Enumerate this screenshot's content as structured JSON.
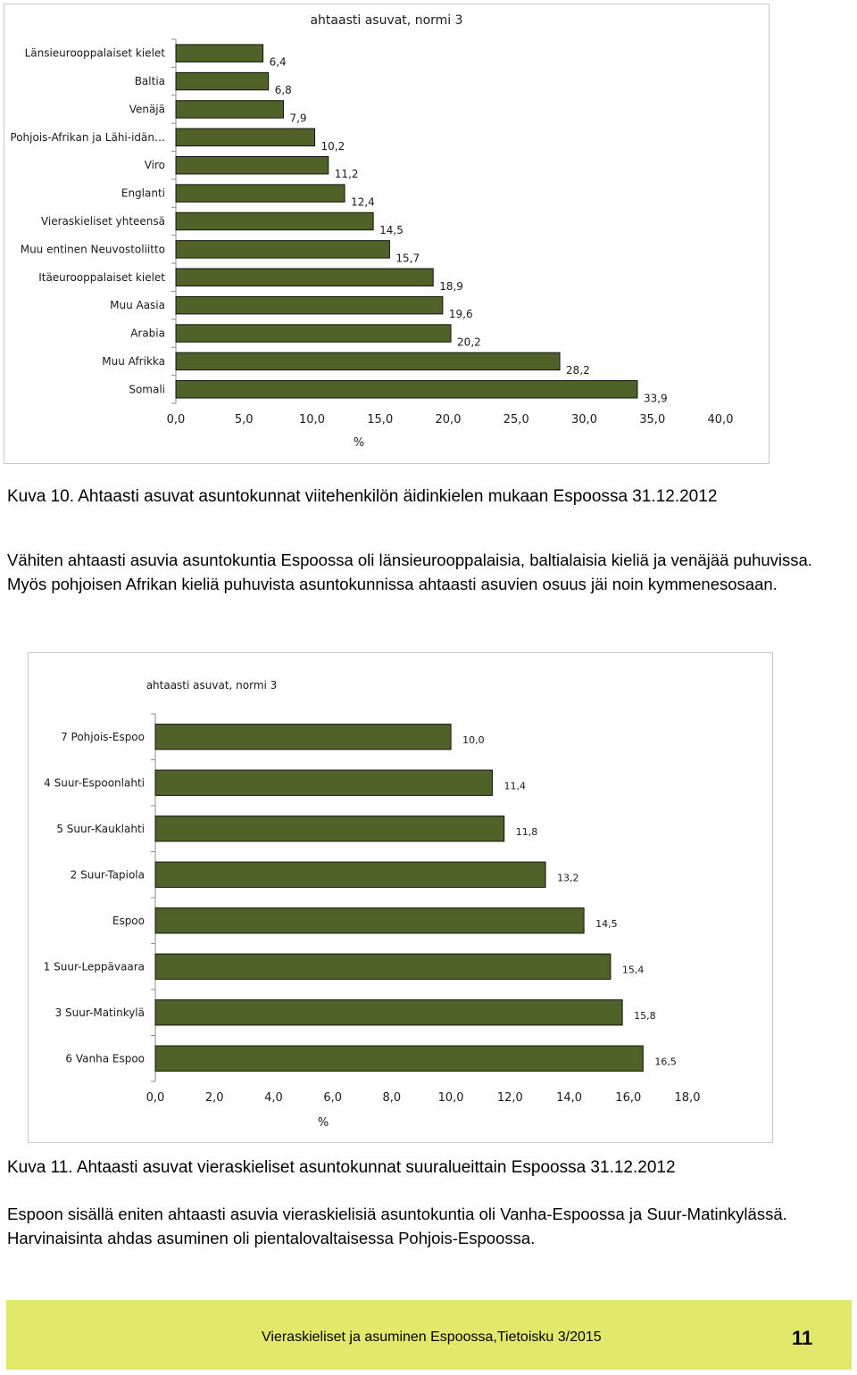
{
  "chart_data": [
    {
      "type": "bar",
      "orientation": "horizontal",
      "title": "ahtaasti asuvat, normi 3",
      "xlabel": "%",
      "xlim": [
        0,
        40
      ],
      "xticks": [
        "0,0",
        "5,0",
        "10,0",
        "15,0",
        "20,0",
        "25,0",
        "30,0",
        "35,0",
        "40,0"
      ],
      "bar_color": "#4f6228",
      "categories": [
        "Länsieurooppalaiset kielet",
        "Baltia",
        "Venäjä",
        "Pohjois-Afrikan ja Lähi-idän…",
        "Viro",
        "Englanti",
        "Vieraskieliset yhteensä",
        "Muu entinen Neuvostoliitto",
        "Itäeurooppalaiset kielet",
        "Muu Aasia",
        "Arabia",
        "Muu Afrikka",
        "Somali"
      ],
      "values": [
        6.4,
        6.8,
        7.9,
        10.2,
        11.2,
        12.4,
        14.5,
        15.7,
        18.9,
        19.6,
        20.2,
        28.2,
        33.9
      ],
      "value_labels": [
        "6,4",
        "6,8",
        "7,9",
        "10,2",
        "11,2",
        "12,4",
        "14,5",
        "15,7",
        "18,9",
        "19,6",
        "20,2",
        "28,2",
        "33,9"
      ]
    },
    {
      "type": "bar",
      "orientation": "horizontal",
      "title": "ahtaasti asuvat, normi 3",
      "xlabel": "%",
      "xlim": [
        0,
        18
      ],
      "xticks": [
        "0,0",
        "2,0",
        "4,0",
        "6,0",
        "8,0",
        "10,0",
        "12,0",
        "14,0",
        "16,0",
        "18,0"
      ],
      "bar_color": "#4f6228",
      "categories": [
        "7 Pohjois-Espoo",
        "4 Suur-Espoonlahti",
        "5 Suur-Kauklahti",
        "2 Suur-Tapiola",
        "Espoo",
        "1 Suur-Leppävaara",
        "3 Suur-Matinkylä",
        "6 Vanha Espoo"
      ],
      "values": [
        10.0,
        11.4,
        11.8,
        13.2,
        14.5,
        15.4,
        15.8,
        16.5
      ],
      "value_labels": [
        "10,0",
        "11,4",
        "11,8",
        "13,2",
        "14,5",
        "15,4",
        "15,8",
        "16,5"
      ]
    }
  ],
  "captions": {
    "fig10": "Kuva 10. Ahtaasti asuvat asuntokunnat viitehenkilön äidinkielen mukaan Espoossa 31.12.2012",
    "fig11": "Kuva 11. Ahtaasti asuvat vieraskieliset asuntokunnat suuralueittain Espoossa 31.12.2012"
  },
  "paragraphs": {
    "p1": "Vähiten ahtaasti asuvia asuntokuntia Espoossa  oli länsieurooppalaisia, baltialaisia kieliä ja venäjää puhuvissa. Myös pohjoisen Afrikan kieliä puhuvista asuntokunnissa ahtaasti asuvien osuus jäi noin kymmenesosaan.",
    "p2": "Espoon sisällä eniten ahtaasti asuvia vieraskielisiä asuntokuntia oli Vanha-Espoossa ja Suur-Matinkylässä. Harvinaisinta ahdas asuminen oli pientalovaltaisessa Pohjois-Espoossa."
  },
  "footer": {
    "publication": "Vieraskieliset ja asuminen Espoossa,Tietoisku 3/2015",
    "page_number": "11"
  }
}
